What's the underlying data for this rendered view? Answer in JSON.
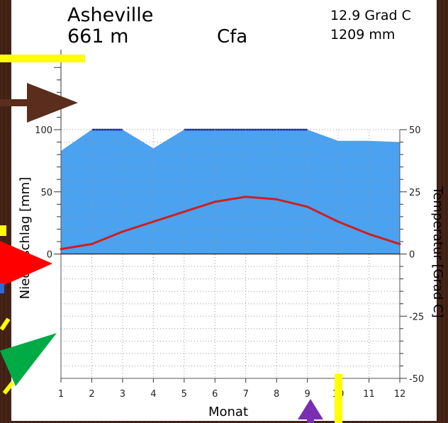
{
  "station": {
    "name": "Asheville",
    "elevation": "661 m",
    "climate_class": "Cfa",
    "mean_temp": "12.9 Grad C",
    "annual_precip": "1209 mm"
  },
  "colors": {
    "precip_fill": "#4aa2f0",
    "precip_top_line": "#1a2aa0",
    "temp_line": "#d01e1e",
    "grid": "#9a9a9a",
    "frame_bg": "#3f2014"
  },
  "chart_data": {
    "type": "area",
    "title": "",
    "xlabel": "Monat",
    "ylabel_left": "Niederschlag [mm]",
    "ylabel_right": "Temperatur [Grad C]",
    "x": [
      1,
      2,
      3,
      4,
      5,
      6,
      7,
      8,
      9,
      10,
      11,
      12
    ],
    "xlim": [
      1,
      12
    ],
    "ylim_left": [
      -100,
      100
    ],
    "ylim_right": [
      -50,
      50
    ],
    "left_ticks": [
      0,
      50,
      100
    ],
    "right_ticks": [
      -50,
      -25,
      0,
      25,
      50
    ],
    "grid": true,
    "series": [
      {
        "name": "Niederschlag",
        "axis": "left",
        "values": [
          83,
          100,
          100,
          85,
          100,
          100,
          100,
          100,
          100,
          91,
          91,
          90
        ]
      },
      {
        "name": "Temperatur",
        "axis": "right",
        "values": [
          2,
          4,
          9,
          13,
          17,
          21,
          23,
          22,
          19,
          13,
          8,
          4
        ]
      }
    ]
  }
}
